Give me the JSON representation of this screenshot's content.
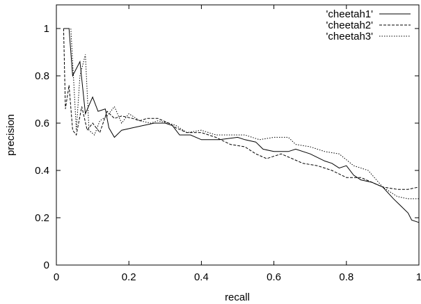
{
  "chart_data": {
    "type": "line",
    "title": "",
    "xlabel": "recall",
    "ylabel": "precision",
    "xlim": [
      0,
      1
    ],
    "ylim": [
      0,
      1.1
    ],
    "xticks": [
      0,
      0.2,
      0.4,
      0.6,
      0.8,
      1
    ],
    "xtick_labels": [
      "0",
      "0.2",
      "0.4",
      "0.6",
      "0.8",
      "1"
    ],
    "yticks": [
      0,
      0.2,
      0.4,
      0.6,
      0.8,
      1
    ],
    "ytick_labels": [
      "0",
      "0.2",
      "0.4",
      "0.6",
      "0.8",
      "1"
    ],
    "grid": false,
    "legend_position": "top-right",
    "series": [
      {
        "name": "'cheetah1'",
        "style": "solid",
        "color": "#000000",
        "points": [
          [
            0.02,
            1.0
          ],
          [
            0.035,
            1.0
          ],
          [
            0.045,
            0.8
          ],
          [
            0.065,
            0.86
          ],
          [
            0.08,
            0.64
          ],
          [
            0.1,
            0.71
          ],
          [
            0.115,
            0.65
          ],
          [
            0.135,
            0.66
          ],
          [
            0.145,
            0.58
          ],
          [
            0.16,
            0.54
          ],
          [
            0.18,
            0.57
          ],
          [
            0.21,
            0.58
          ],
          [
            0.24,
            0.59
          ],
          [
            0.27,
            0.6
          ],
          [
            0.3,
            0.6
          ],
          [
            0.32,
            0.59
          ],
          [
            0.34,
            0.55
          ],
          [
            0.37,
            0.55
          ],
          [
            0.4,
            0.53
          ],
          [
            0.45,
            0.53
          ],
          [
            0.5,
            0.54
          ],
          [
            0.52,
            0.53
          ],
          [
            0.55,
            0.52
          ],
          [
            0.57,
            0.49
          ],
          [
            0.6,
            0.48
          ],
          [
            0.64,
            0.48
          ],
          [
            0.66,
            0.49
          ],
          [
            0.7,
            0.47
          ],
          [
            0.74,
            0.44
          ],
          [
            0.76,
            0.43
          ],
          [
            0.78,
            0.41
          ],
          [
            0.8,
            0.42
          ],
          [
            0.82,
            0.38
          ],
          [
            0.84,
            0.36
          ],
          [
            0.87,
            0.35
          ],
          [
            0.9,
            0.33
          ],
          [
            0.93,
            0.28
          ],
          [
            0.95,
            0.25
          ],
          [
            0.97,
            0.22
          ],
          [
            0.98,
            0.19
          ],
          [
            1.0,
            0.18
          ]
        ]
      },
      {
        "name": "'cheetah2'",
        "style": "dashed",
        "color": "#000000",
        "points": [
          [
            0.02,
            1.0
          ],
          [
            0.025,
            0.66
          ],
          [
            0.035,
            0.76
          ],
          [
            0.045,
            0.57
          ],
          [
            0.055,
            0.55
          ],
          [
            0.07,
            0.67
          ],
          [
            0.085,
            0.57
          ],
          [
            0.1,
            0.6
          ],
          [
            0.12,
            0.56
          ],
          [
            0.14,
            0.65
          ],
          [
            0.16,
            0.62
          ],
          [
            0.18,
            0.63
          ],
          [
            0.21,
            0.62
          ],
          [
            0.23,
            0.61
          ],
          [
            0.25,
            0.62
          ],
          [
            0.28,
            0.62
          ],
          [
            0.31,
            0.6
          ],
          [
            0.33,
            0.58
          ],
          [
            0.36,
            0.56
          ],
          [
            0.4,
            0.56
          ],
          [
            0.44,
            0.54
          ],
          [
            0.48,
            0.51
          ],
          [
            0.52,
            0.5
          ],
          [
            0.55,
            0.47
          ],
          [
            0.58,
            0.45
          ],
          [
            0.62,
            0.47
          ],
          [
            0.65,
            0.45
          ],
          [
            0.68,
            0.43
          ],
          [
            0.72,
            0.42
          ],
          [
            0.76,
            0.4
          ],
          [
            0.8,
            0.37
          ],
          [
            0.84,
            0.37
          ],
          [
            0.87,
            0.35
          ],
          [
            0.9,
            0.33
          ],
          [
            0.94,
            0.32
          ],
          [
            0.97,
            0.32
          ],
          [
            1.0,
            0.33
          ]
        ]
      },
      {
        "name": "'cheetah3'",
        "style": "dotted",
        "color": "#000000",
        "points": [
          [
            0.02,
            1.0
          ],
          [
            0.04,
            1.0
          ],
          [
            0.055,
            0.57
          ],
          [
            0.065,
            0.8
          ],
          [
            0.08,
            0.89
          ],
          [
            0.09,
            0.57
          ],
          [
            0.105,
            0.55
          ],
          [
            0.12,
            0.61
          ],
          [
            0.14,
            0.63
          ],
          [
            0.16,
            0.67
          ],
          [
            0.18,
            0.6
          ],
          [
            0.2,
            0.64
          ],
          [
            0.23,
            0.61
          ],
          [
            0.26,
            0.6
          ],
          [
            0.28,
            0.61
          ],
          [
            0.31,
            0.6
          ],
          [
            0.33,
            0.59
          ],
          [
            0.36,
            0.56
          ],
          [
            0.4,
            0.57
          ],
          [
            0.44,
            0.55
          ],
          [
            0.48,
            0.55
          ],
          [
            0.52,
            0.55
          ],
          [
            0.56,
            0.53
          ],
          [
            0.6,
            0.54
          ],
          [
            0.64,
            0.54
          ],
          [
            0.66,
            0.51
          ],
          [
            0.7,
            0.5
          ],
          [
            0.74,
            0.48
          ],
          [
            0.78,
            0.47
          ],
          [
            0.82,
            0.42
          ],
          [
            0.86,
            0.4
          ],
          [
            0.9,
            0.33
          ],
          [
            0.94,
            0.29
          ],
          [
            0.97,
            0.28
          ],
          [
            1.0,
            0.28
          ]
        ]
      }
    ]
  }
}
